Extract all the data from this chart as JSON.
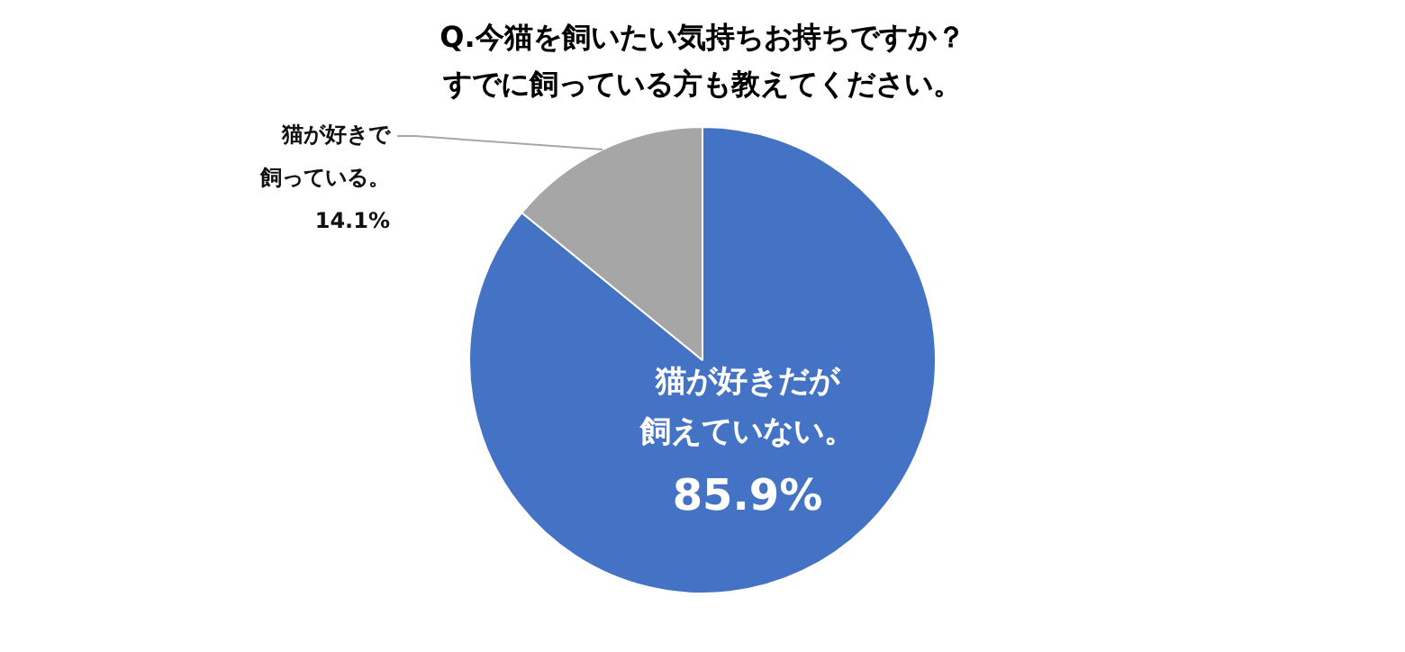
{
  "chart_data": {
    "type": "pie",
    "title": "Q.今猫を飼いたい気持ちお持ちですか？すでに飼っている方も教えてください。",
    "categories": [
      "猫が好きだが飼えていない。",
      "猫が好きで飼っている。"
    ],
    "values": [
      85.9,
      14.1
    ],
    "colors": [
      "#4472c4",
      "#a6a6a6"
    ],
    "value_labels": [
      "85.9%",
      "14.1%"
    ],
    "legend": false
  }
}
